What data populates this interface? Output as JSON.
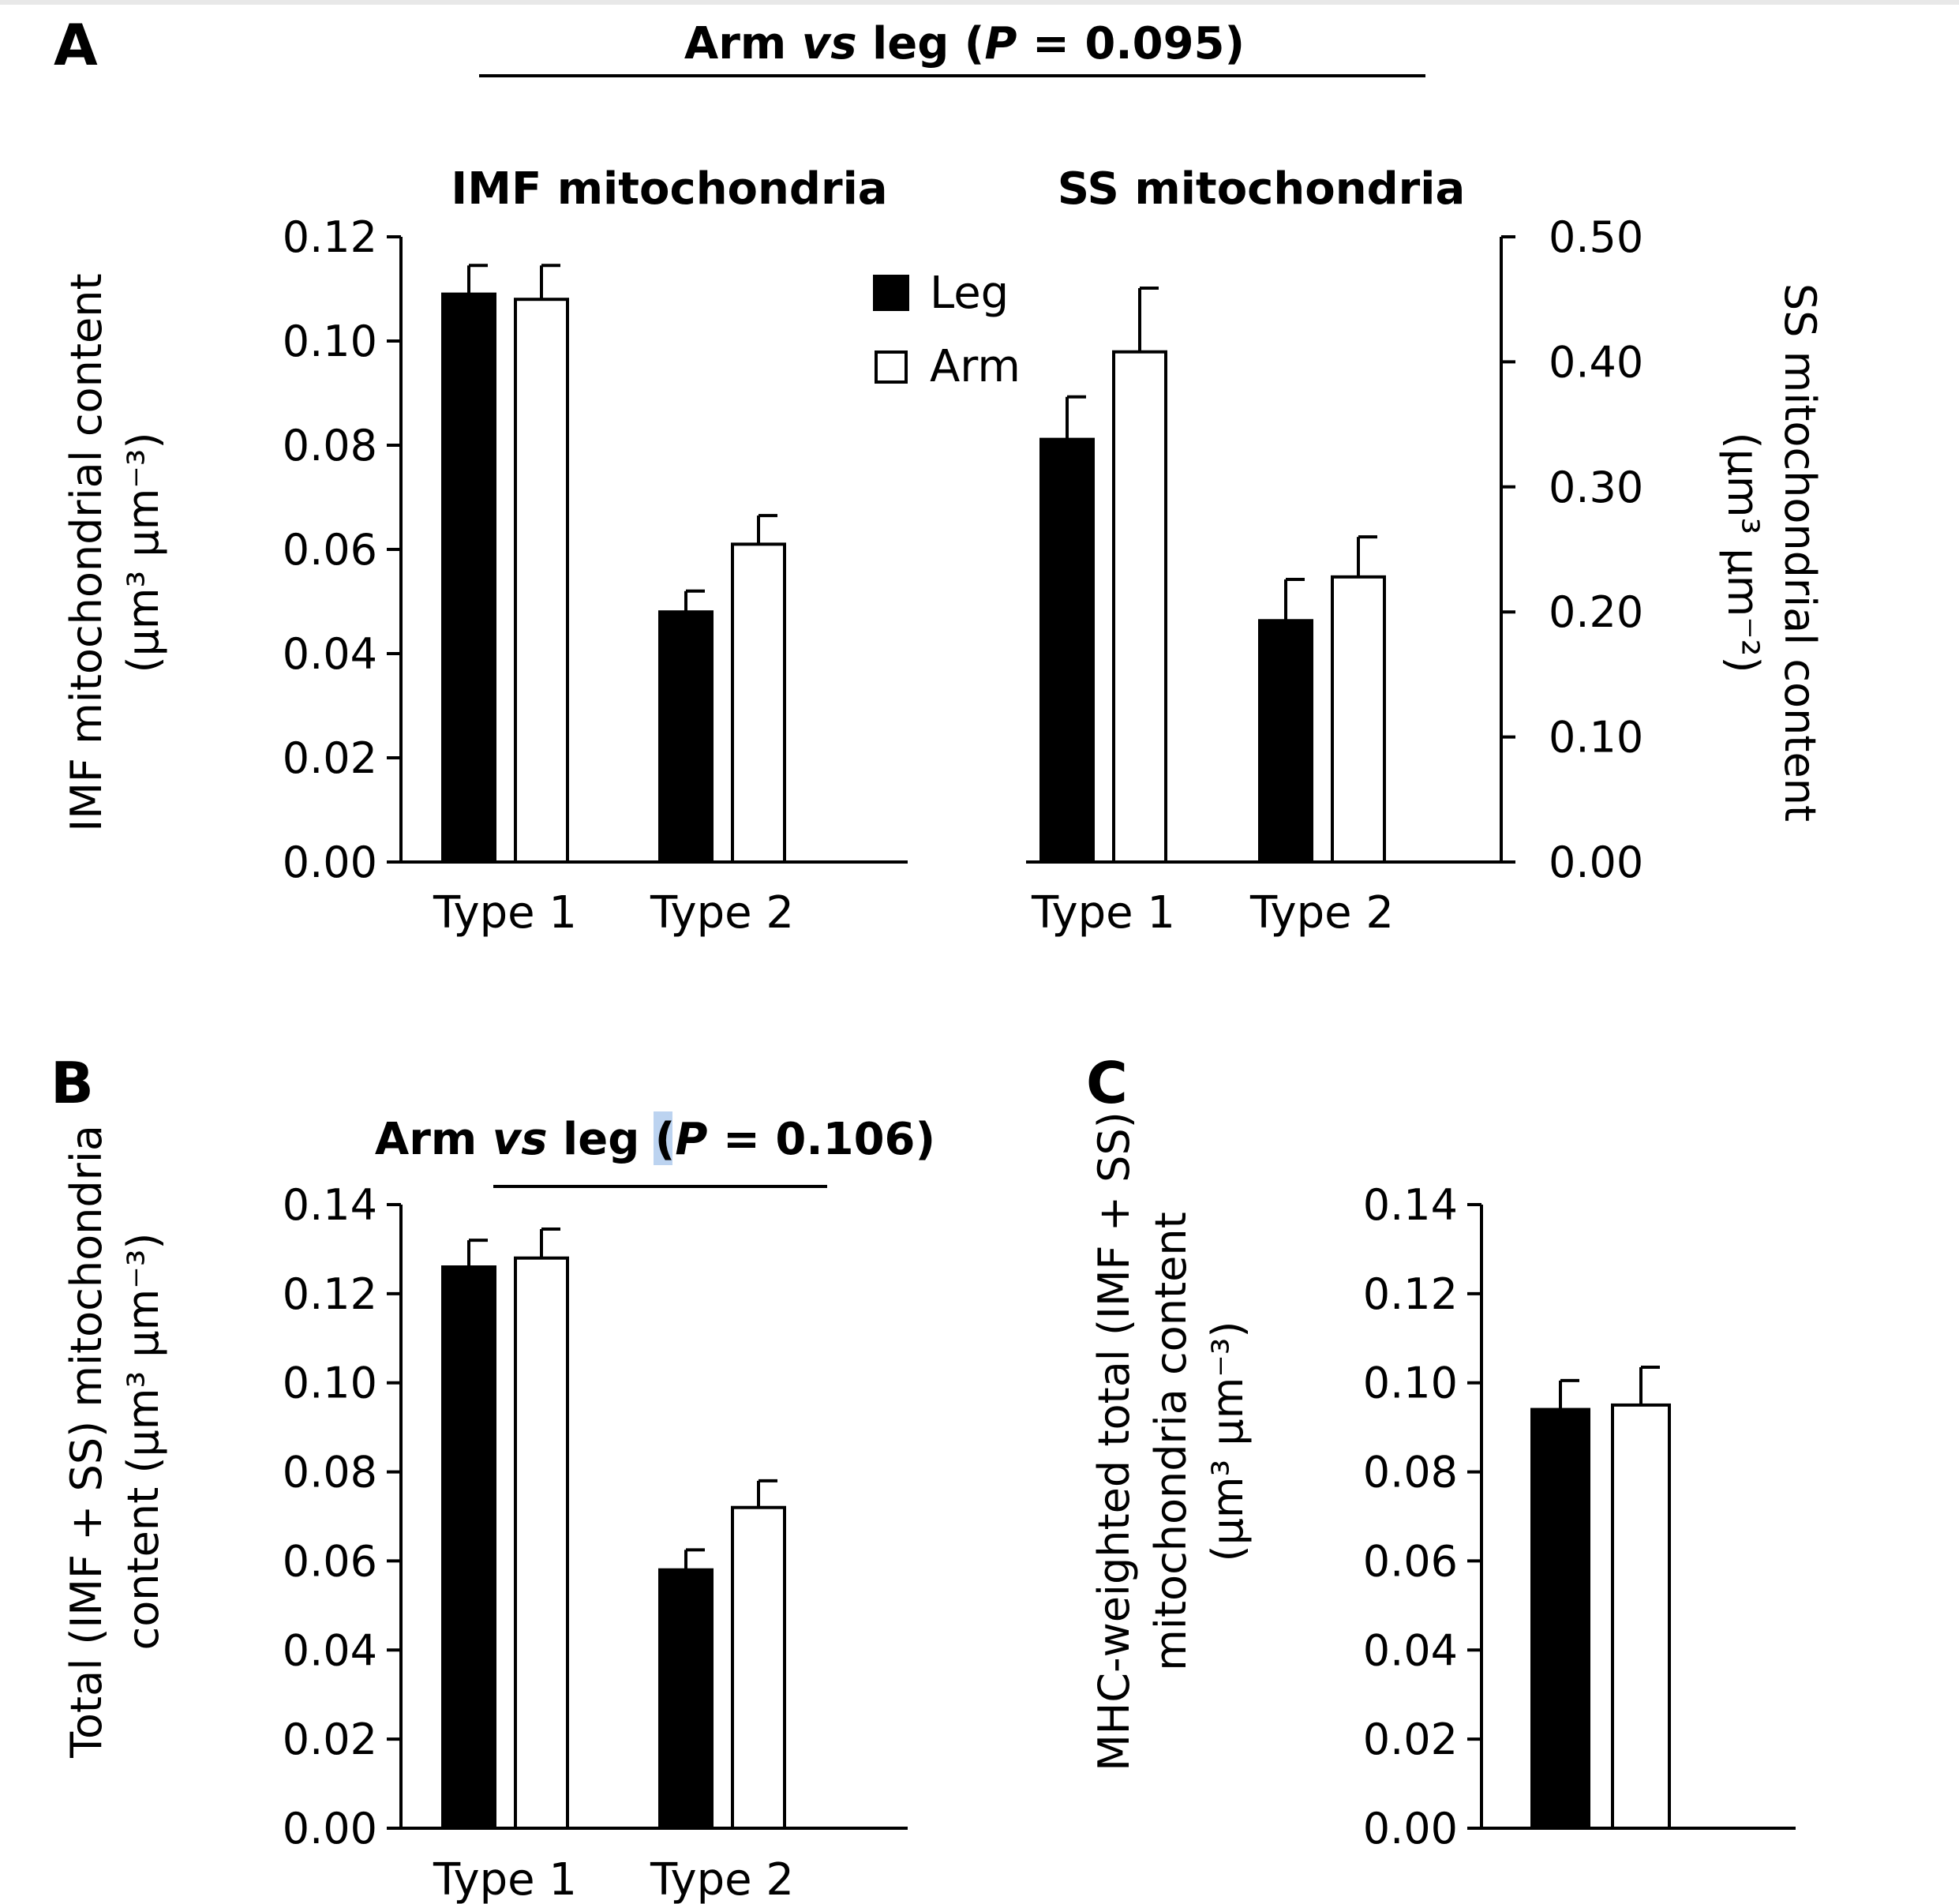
{
  "figure": {
    "panel_labels": {
      "a": "A",
      "b": "B",
      "c": "C"
    },
    "legend": {
      "series": [
        {
          "name": "Leg",
          "fill": "#000000"
        },
        {
          "name": "Arm",
          "fill": "#ffffff"
        }
      ]
    },
    "colors": {
      "leg": "#000000",
      "arm": "#ffffff",
      "axis": "#000000",
      "highlight": "#bcd3f0"
    }
  },
  "chart_data": [
    {
      "id": "A-left",
      "type": "bar",
      "title": "IMF mitochondria",
      "comparison": "Arm vs leg (P = 0.095)",
      "categories": [
        "Type 1",
        "Type 2"
      ],
      "ylabel_line1": "IMF mitochondrial content",
      "ylabel_line2": "(µm³ µm⁻³)",
      "ylim": [
        0,
        0.12
      ],
      "yticks": [
        "0.00",
        "0.02",
        "0.04",
        "0.06",
        "0.08",
        "0.10",
        "0.12"
      ],
      "series": [
        {
          "name": "Leg",
          "values": [
            0.109,
            0.048
          ],
          "errors": [
            0.0055,
            0.004
          ]
        },
        {
          "name": "Arm",
          "values": [
            0.108,
            0.061
          ],
          "errors": [
            0.0065,
            0.0055
          ]
        }
      ]
    },
    {
      "id": "A-right",
      "type": "bar",
      "title": "SS mitochondria",
      "categories": [
        "Type 1",
        "Type 2"
      ],
      "ylabel_line1": "SS mitochondrial content",
      "ylabel_line2": "(µm³ µm⁻²)",
      "ylim": [
        0,
        0.5
      ],
      "yticks": [
        "0.00",
        "0.10",
        "0.20",
        "0.30",
        "0.40",
        "0.50"
      ],
      "series": [
        {
          "name": "Leg",
          "values": [
            0.338,
            0.193
          ],
          "errors": [
            0.034,
            0.033
          ]
        },
        {
          "name": "Arm",
          "values": [
            0.408,
            0.228
          ],
          "errors": [
            0.051,
            0.032
          ]
        }
      ]
    },
    {
      "id": "B",
      "type": "bar",
      "comparison": "Arm vs leg (P = 0.106)",
      "categories": [
        "Type 1",
        "Type 2"
      ],
      "ylabel_line1": "Total (IMF + SS) mitochondria",
      "ylabel_line2": "content (µm³ µm⁻³)",
      "ylim": [
        0,
        0.14
      ],
      "yticks": [
        "0.00",
        "0.02",
        "0.04",
        "0.06",
        "0.08",
        "0.10",
        "0.12",
        "0.14"
      ],
      "series": [
        {
          "name": "Leg",
          "values": [
            0.126,
            0.058
          ],
          "errors": [
            0.006,
            0.0045
          ]
        },
        {
          "name": "Arm",
          "values": [
            0.128,
            0.072
          ],
          "errors": [
            0.0065,
            0.006
          ]
        }
      ]
    },
    {
      "id": "C",
      "type": "bar",
      "categories": [
        ""
      ],
      "ylabel_line1": "MHC-weighted total (IMF + SS)",
      "ylabel_line2": "mitochondria content",
      "ylabel_line3": "(µm³ µm⁻³)",
      "ylim": [
        0,
        0.14
      ],
      "yticks": [
        "0.00",
        "0.02",
        "0.04",
        "0.06",
        "0.08",
        "0.10",
        "0.12",
        "0.14"
      ],
      "series": [
        {
          "name": "Leg",
          "values": [
            0.094
          ],
          "errors": [
            0.0065
          ]
        },
        {
          "name": "Arm",
          "values": [
            0.095
          ],
          "errors": [
            0.0085
          ]
        }
      ]
    }
  ]
}
